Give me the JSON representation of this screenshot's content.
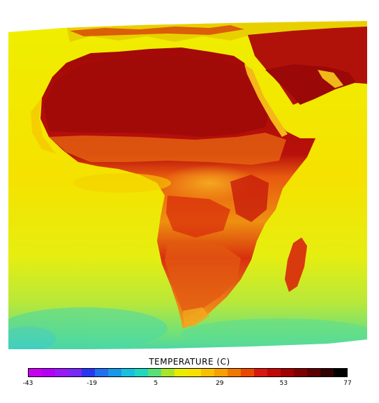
{
  "map": {
    "region": "Africa",
    "colors": {
      "ocean_yellow": "#f5e600",
      "ocean_light": "#e8f000",
      "ocean_green": "#a8e23a",
      "ocean_cyan": "#38d8b0",
      "land_orange": "#f59a10",
      "land_red": "#d8260e",
      "desert_darkred": "#a00a08",
      "coast_yellow": "#f0c800"
    }
  },
  "legend": {
    "title": "TEMPERATURE (C)",
    "tick_labels": [
      "-43",
      "-19",
      "5",
      "29",
      "53",
      "77"
    ],
    "tick_values": [
      -43,
      -19,
      5,
      29,
      53,
      77
    ],
    "range": [
      -43,
      77
    ],
    "swatches": [
      "#c800f0",
      "#b400f8",
      "#9a18f8",
      "#7828f8",
      "#2838f0",
      "#2070f0",
      "#1898e8",
      "#18c0e0",
      "#20d8c0",
      "#58e078",
      "#a8e428",
      "#e8ec00",
      "#f8e000",
      "#f8c000",
      "#f8a000",
      "#f07800",
      "#e84800",
      "#d81810",
      "#c00808",
      "#a00000",
      "#7c0000",
      "#5a0000",
      "#300000",
      "#000000"
    ]
  }
}
